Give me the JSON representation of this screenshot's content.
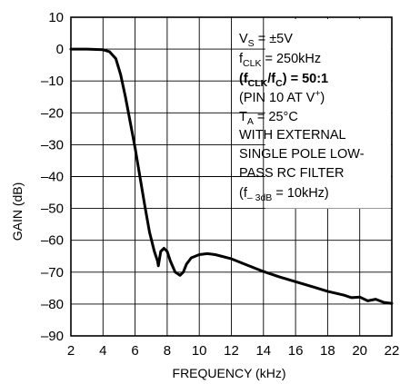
{
  "chart_data": {
    "type": "line",
    "title": "",
    "xlabel": "FREQUENCY (kHz)",
    "ylabel": "GAIN (dB)",
    "xlim": [
      2,
      22
    ],
    "ylim": [
      -90,
      10
    ],
    "x_ticks": [
      "2",
      "4",
      "6",
      "8",
      "10",
      "12",
      "14",
      "16",
      "18",
      "20",
      "22"
    ],
    "y_ticks": [
      "10",
      "0",
      "–10",
      "–20",
      "–30",
      "–40",
      "–50",
      "–60",
      "–70",
      "–80",
      "–90"
    ],
    "grid": true,
    "series": [
      {
        "name": "",
        "x": [
          2.0,
          3.0,
          4.0,
          4.4,
          4.8,
          5.1,
          5.4,
          5.7,
          6.0,
          6.3,
          6.6,
          6.9,
          7.2,
          7.4,
          7.45,
          7.6,
          7.8,
          8.0,
          8.2,
          8.5,
          8.8,
          9.0,
          9.2,
          9.5,
          10.0,
          10.5,
          11.0,
          12.0,
          13.0,
          14.0,
          15.0,
          16.0,
          17.0,
          18.0,
          19.0,
          19.5,
          20.0,
          20.5,
          21.0,
          21.5,
          22.0
        ],
        "y": [
          0.0,
          0.0,
          -0.2,
          -0.8,
          -3.0,
          -8.0,
          -15.0,
          -23.0,
          -31.0,
          -40.0,
          -49.0,
          -57.5,
          -63.5,
          -66.5,
          -68.0,
          -63.5,
          -62.5,
          -63.5,
          -66.5,
          -70.0,
          -71.0,
          -70.0,
          -67.5,
          -65.5,
          -64.5,
          -64.2,
          -64.5,
          -65.8,
          -67.8,
          -69.8,
          -71.5,
          -73.0,
          -74.5,
          -76.0,
          -77.2,
          -78.0,
          -77.8,
          -79.0,
          -78.5,
          -79.5,
          -79.8
        ]
      }
    ],
    "annotations": [
      {
        "main": "V",
        "sub": "S",
        "rest": " = ±5V"
      },
      {
        "main": "f",
        "sub": "CLK",
        "rest": " = 250kHz"
      },
      {
        "lead": "(f",
        "sub1": "CLK",
        "mid": "/f",
        "sub2": "C",
        "rest": ") = 50:1"
      },
      {
        "lead": "(PIN 10 AT V",
        "sup": "+",
        "rest": ")"
      },
      {
        "main": "T",
        "sub": "A",
        "rest": " = 25°C"
      },
      {
        "text": "WITH EXTERNAL"
      },
      {
        "text": "SINGLE POLE LOW-"
      },
      {
        "text": "PASS RC FILTER"
      },
      {
        "lead": "(f",
        "sub": "– 3dB",
        "rest": " = 10kHz)"
      }
    ]
  }
}
